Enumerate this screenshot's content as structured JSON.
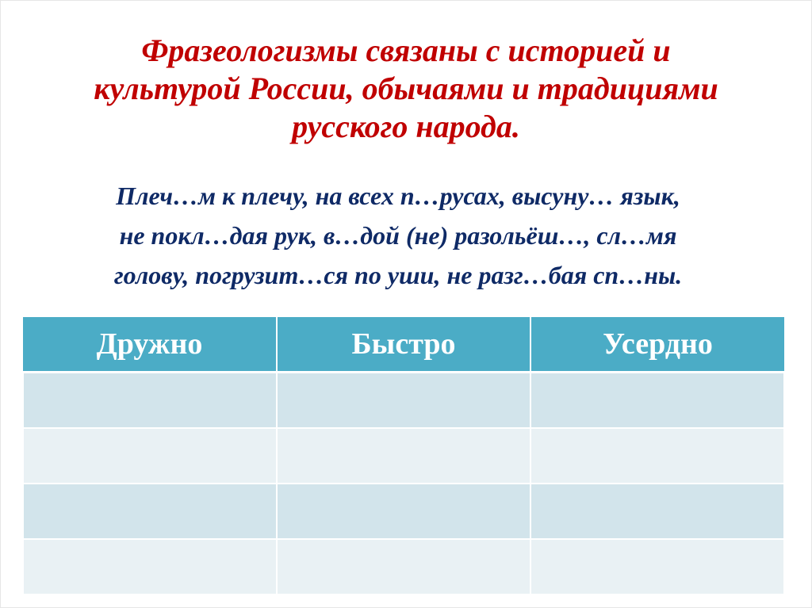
{
  "title": {
    "lines": [
      "Фразеологизмы связаны с историей и",
      "культурой России, обычаями и традициями",
      "русского народа."
    ]
  },
  "phrases": {
    "lines": [
      "Плеч…м к плечу, на всех п…русах, высуну… язык,",
      "не покл…дая рук, в…дой (не) разольёш…, сл…мя",
      "голову, погрузит…ся по уши, не разг…бая сп…ны."
    ]
  },
  "table": {
    "headers": [
      "Дружно",
      "Быстро",
      "Усердно"
    ],
    "rows": [
      [
        "",
        "",
        ""
      ],
      [
        "",
        "",
        ""
      ],
      [
        "",
        "",
        ""
      ],
      [
        "",
        "",
        ""
      ]
    ]
  },
  "colors": {
    "title": "#c00000",
    "text": "#0f2a66",
    "header": "#4bacc6",
    "row_dark": "#d2e4eb",
    "row_light": "#e9f1f4"
  }
}
